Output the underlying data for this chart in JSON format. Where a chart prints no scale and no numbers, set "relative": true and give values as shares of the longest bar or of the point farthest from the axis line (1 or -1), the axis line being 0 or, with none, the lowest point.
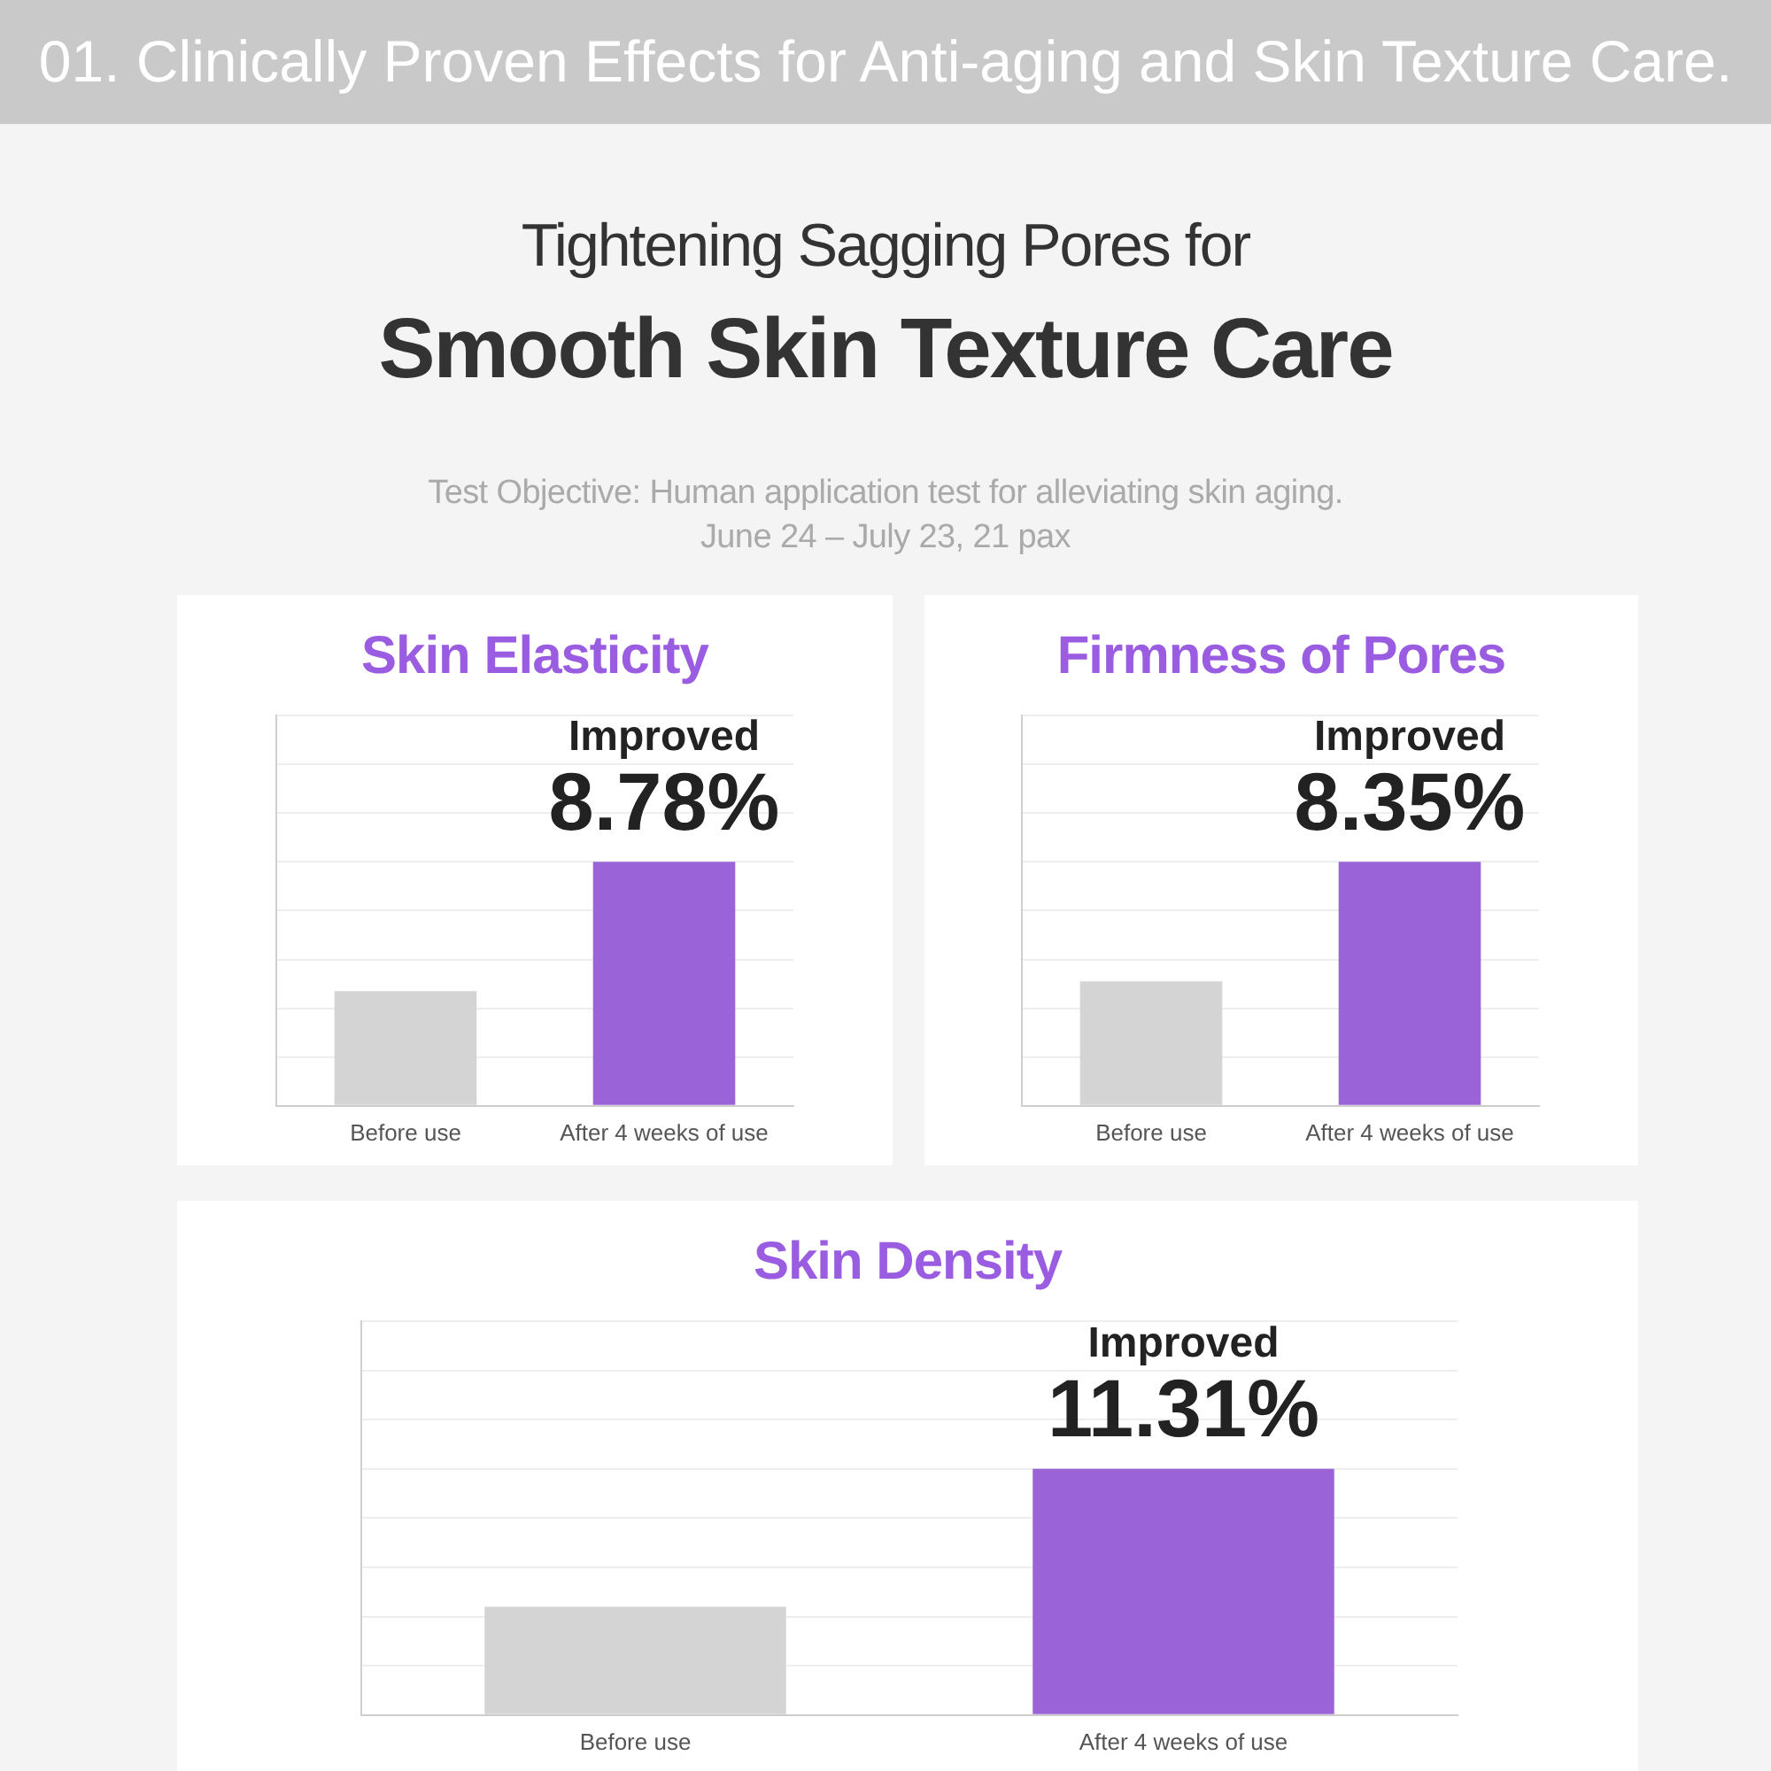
{
  "chart_data": [
    {
      "type": "bar",
      "title": "Skin Elasticity",
      "relative": true,
      "grid": "y",
      "categories": [
        "Before use",
        "After 4 weeks of use"
      ],
      "values": [
        0.47,
        1
      ],
      "colors": [
        "#d4d4d4",
        "#9b63d8"
      ],
      "annotations": [
        "01. Clinically Proven Effects for Anti-aging and Skin Texture Care.",
        "Tightening Sagging Pores for",
        "Smooth Skin Texture Care",
        "Test Objective: Human application test for alleviating skin aging.",
        "June 24 – July 23, 21 pax",
        {
          "text": "Improved",
          "x": "After 4 weeks of use",
          "y": 1
        },
        {
          "text": "8.78%",
          "x": "After 4 weeks of use",
          "y": 1
        }
      ]
    },
    {
      "type": "bar",
      "title": "Firmness of Pores",
      "relative": true,
      "grid": "y",
      "categories": [
        "Before use",
        "After 4 weeks of use"
      ],
      "values": [
        0.51,
        1
      ],
      "colors": [
        "#d4d4d4",
        "#9b63d8"
      ],
      "annotations": [
        {
          "text": "Improved",
          "x": "After 4 weeks of use",
          "y": 1
        },
        {
          "text": "8.35%",
          "x": "After 4 weeks of use",
          "y": 1
        }
      ]
    },
    {
      "type": "bar",
      "title": "Skin Density",
      "relative": true,
      "grid": "y",
      "categories": [
        "Before use",
        "After 4 weeks of use"
      ],
      "values": [
        0.44,
        1
      ],
      "colors": [
        "#d4d4d4",
        "#9b63d8"
      ],
      "annotations": [
        {
          "text": "Improved",
          "x": "After 4 weeks of use",
          "y": 1
        },
        {
          "text": "11.31%",
          "x": "After 4 weeks of use",
          "y": 1
        }
      ]
    }
  ]
}
